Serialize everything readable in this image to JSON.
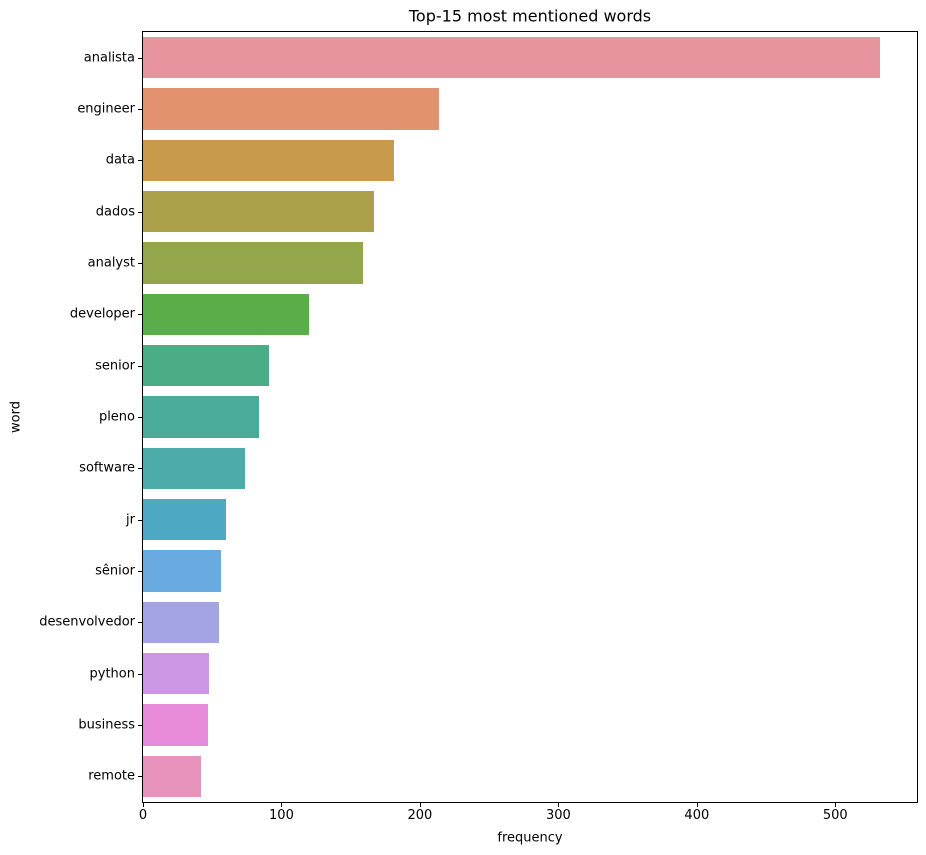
{
  "chart_data": {
    "type": "bar",
    "orientation": "horizontal",
    "title": "Top-15 most mentioned words",
    "xlabel": "frequency",
    "ylabel": "word",
    "categories": [
      "analista",
      "engineer",
      "data",
      "dados",
      "analyst",
      "developer",
      "senior",
      "pleno",
      "software",
      "jr",
      "sênior",
      "desenvolvedor",
      "python",
      "business",
      "remote"
    ],
    "values": [
      532,
      214,
      181,
      167,
      159,
      120,
      91,
      84,
      74,
      60,
      56,
      55,
      48,
      47,
      42
    ],
    "bar_colors": [
      "#e8949f",
      "#e2926f",
      "#c89a4c",
      "#ada04a",
      "#93a64b",
      "#5bad49",
      "#4bad86",
      "#4aab9b",
      "#4dabaa",
      "#4da9c3",
      "#69aae1",
      "#a4a4e5",
      "#cb96e3",
      "#e78ad9",
      "#e893bb"
    ],
    "xticks": [
      0,
      100,
      200,
      300,
      400,
      500
    ],
    "xlim": [
      0,
      559
    ],
    "grid": false,
    "legend": false,
    "bar_fraction": 0.8
  },
  "colors": {
    "background": "#ffffff",
    "spine": "#000000",
    "text": "#000000"
  }
}
